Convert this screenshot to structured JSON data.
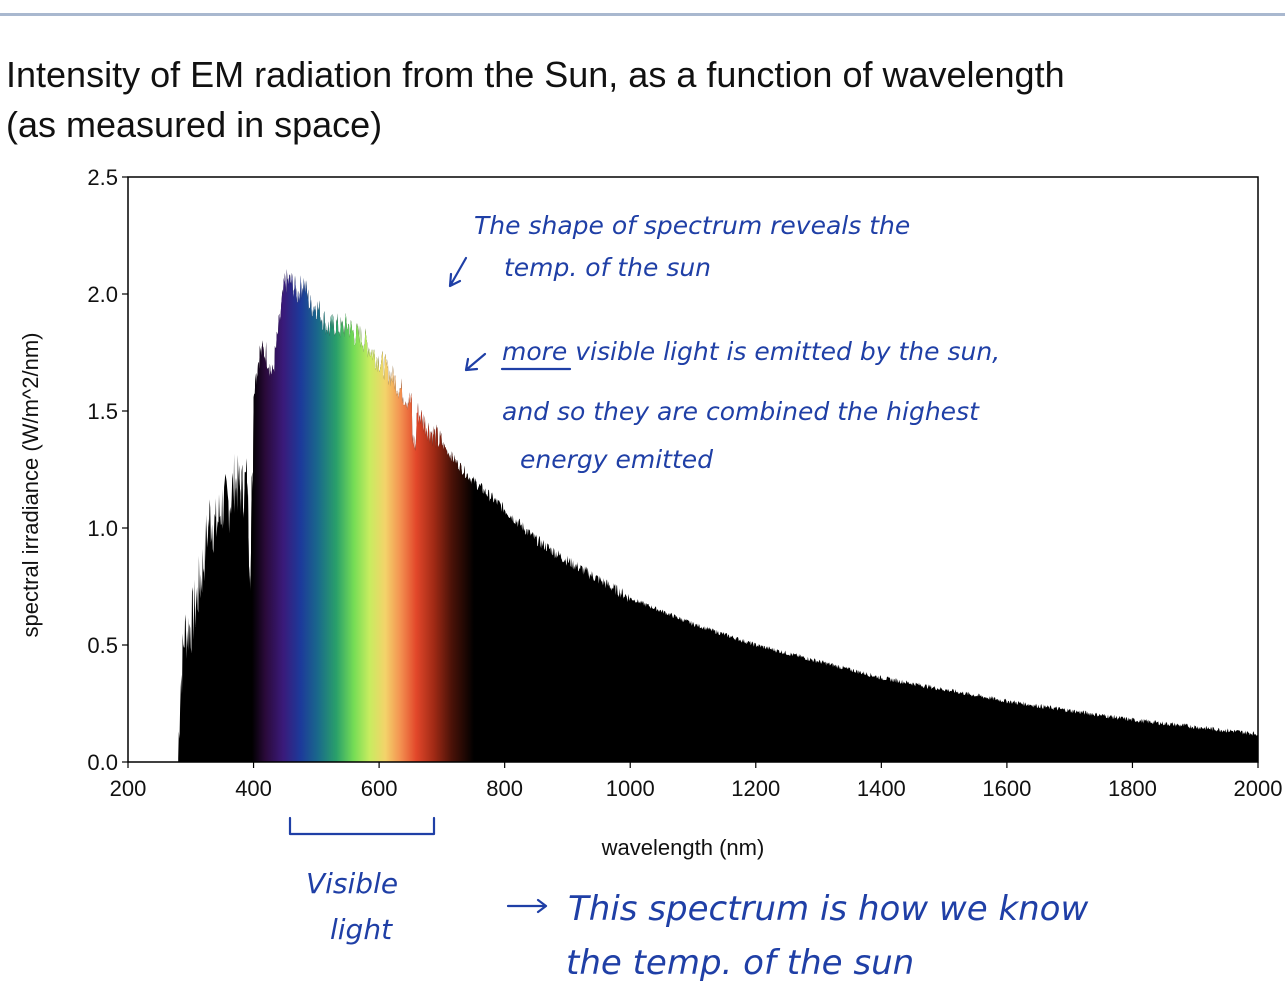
{
  "title": {
    "line1": "Intensity of EM radiation from the Sun, as a function of wavelength",
    "line2": "(as measured in space)"
  },
  "colors": {
    "ink": "#1f3fa6",
    "spectrum_fill": "#000000",
    "rule": "#a9b8cf"
  },
  "chart_data": {
    "type": "area",
    "title": "",
    "xlabel": "wavelength (nm)",
    "ylabel": "spectral irradiance (W/m^2/nm)",
    "xlim": [
      200,
      2000
    ],
    "ylim": [
      0,
      2.5
    ],
    "x_ticks": [
      "200",
      "400",
      "600",
      "800",
      "1000",
      "1200",
      "1400",
      "1600",
      "1800",
      "2000"
    ],
    "y_ticks": [
      "0.0",
      "0.5",
      "1.0",
      "1.5",
      "2.0",
      "2.5"
    ],
    "grid": false,
    "legend": "none",
    "visible_band_nm": [
      380,
      750
    ],
    "series": [
      {
        "x": [
          280,
          283,
          290,
          300,
          310,
          320,
          330,
          340,
          350,
          360,
          370,
          380,
          390,
          395,
          400,
          410,
          420,
          430,
          440,
          450,
          460,
          470,
          480,
          490,
          500,
          510,
          520,
          530,
          540,
          550,
          560,
          570,
          580,
          590,
          600,
          620,
          640,
          660,
          680,
          700,
          720,
          750,
          800,
          850,
          900,
          950,
          1000,
          1100,
          1200,
          1300,
          1400,
          1500,
          1600,
          1700,
          1800,
          1900,
          2000
        ],
        "values": [
          0.02,
          0.3,
          0.55,
          0.58,
          0.7,
          0.85,
          1.05,
          1.0,
          1.1,
          1.1,
          1.2,
          1.15,
          1.2,
          1.0,
          1.6,
          1.75,
          1.75,
          1.65,
          1.85,
          2.05,
          2.05,
          2.0,
          2.05,
          1.95,
          1.95,
          1.9,
          1.85,
          1.87,
          1.85,
          1.87,
          1.83,
          1.82,
          1.79,
          1.75,
          1.72,
          1.65,
          1.57,
          1.5,
          1.42,
          1.36,
          1.29,
          1.2,
          1.08,
          0.95,
          0.86,
          0.78,
          0.7,
          0.59,
          0.5,
          0.43,
          0.36,
          0.31,
          0.26,
          0.22,
          0.18,
          0.15,
          0.12
        ]
      }
    ]
  },
  "annotations": {
    "note1_line1": "The shape of spectrum reveals the",
    "note1_line2": "temp. of the sun",
    "note2_line1": "more visible light is emitted by the sun,",
    "note2_line2": "and so they are combined the highest",
    "note2_line3": "energy emitted",
    "visible_label_line1": "Visible",
    "visible_label_line2": "light",
    "bottom_line1": "This spectrum is how we know",
    "bottom_line2": "the temp. of the sun"
  }
}
